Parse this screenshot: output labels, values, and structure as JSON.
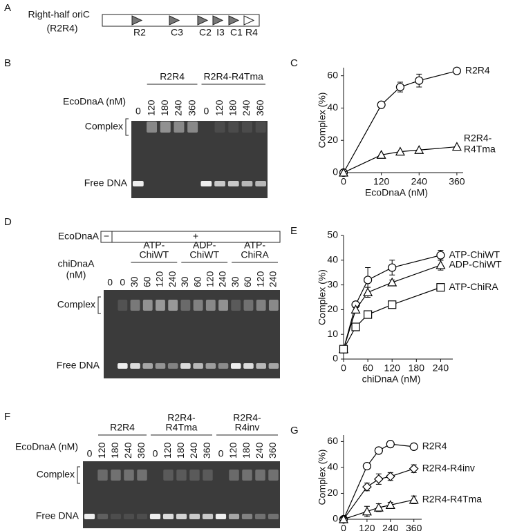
{
  "figure": {
    "A": {
      "label": "A",
      "title_line1": "Right-half oriC",
      "title_line2": "(R2R4)",
      "sites": [
        {
          "name": "R2",
          "filled": true
        },
        {
          "name": "C3",
          "filled": true
        },
        {
          "name": "C2",
          "filled": true
        },
        {
          "name": "I3",
          "filled": true
        },
        {
          "name": "C1",
          "filled": true
        },
        {
          "name": "R4",
          "filled": false
        }
      ]
    },
    "B": {
      "label": "B",
      "groups": [
        [
          "R2R4"
        ],
        [
          "R2R4-R4Tma"
        ]
      ],
      "axis_label": [
        "EcoDnaA (nM)"
      ],
      "lanes": [
        "0",
        "120",
        "180",
        "240",
        "360",
        "0",
        "120",
        "180",
        "240",
        "360"
      ],
      "complex": "Complex",
      "free": "Free DNA"
    },
    "D": {
      "label": "D",
      "protein": "EcoDnaA",
      "minus": "−",
      "plus": "+",
      "groups": [
        [
          "ATP-",
          "ChiWT"
        ],
        [
          "ADP-",
          "ChiWT"
        ],
        [
          "ATP-",
          "ChiRA"
        ]
      ],
      "axis_label": [
        "chiDnaA",
        "(nM)"
      ],
      "lanes": [
        "0",
        "0",
        "30",
        "60",
        "120",
        "240",
        "30",
        "60",
        "120",
        "240",
        "30",
        "60",
        "120",
        "240"
      ],
      "complex": "Complex",
      "free": "Free DNA"
    },
    "F": {
      "label": "F",
      "groups": [
        [
          "R2R4"
        ],
        [
          "R2R4-",
          "R4Tma"
        ],
        [
          "R2R4-",
          "R4inv"
        ]
      ],
      "axis_label": [
        "EcoDnaA (nM)"
      ],
      "lanes": [
        "0",
        "120",
        "180",
        "240",
        "360",
        "0",
        "120",
        "180",
        "240",
        "360",
        "0",
        "120",
        "180",
        "240",
        "360"
      ],
      "complex": "Complex",
      "free": "Free DNA"
    }
  },
  "chart_data": [
    {
      "type": "line",
      "label": "C",
      "ylabel": "Complex (%)",
      "xlabel": "EcoDnaA (nM)",
      "x": [
        0,
        120,
        180,
        240,
        360
      ],
      "xlim": [
        0,
        380
      ],
      "ylim": [
        0,
        65
      ],
      "xticks": [
        0,
        120,
        240,
        360
      ],
      "yticks": [
        0,
        20,
        40,
        60
      ],
      "series": [
        {
          "name": "R2R4",
          "color": "#000000",
          "marker": "circle",
          "values": [
            0,
            42,
            53,
            57,
            63
          ],
          "errors": [
            0,
            0,
            3,
            4,
            0
          ]
        },
        {
          "name": "R2R4-R4Tma",
          "color": "#000000",
          "marker": "triangle",
          "values": [
            0,
            11,
            13,
            14,
            16
          ],
          "errors": [
            0,
            0,
            0,
            0,
            0
          ]
        }
      ]
    },
    {
      "type": "line",
      "label": "E",
      "ylabel": "Complex (%)",
      "xlabel": "chiDnaA (nM)",
      "x": [
        0,
        30,
        60,
        120,
        240
      ],
      "xlim": [
        0,
        270
      ],
      "ylim": [
        0,
        50
      ],
      "xticks": [
        0,
        60,
        120,
        180,
        240
      ],
      "yticks": [
        0,
        10,
        20,
        30,
        40,
        50
      ],
      "series": [
        {
          "name": "ATP-ChiWT",
          "color": "#000000",
          "marker": "circle",
          "values": [
            4,
            22,
            32,
            37,
            42
          ],
          "errors": [
            1,
            1,
            5,
            3,
            2
          ]
        },
        {
          "name": "ADP-ChiWT",
          "color": "#000000",
          "marker": "triangle",
          "values": [
            4,
            20,
            27,
            31,
            38
          ],
          "errors": [
            1,
            1,
            2,
            1,
            2
          ]
        },
        {
          "name": "ATP-ChiRA",
          "color": "#000000",
          "marker": "square",
          "values": [
            4,
            13,
            18,
            22,
            29
          ],
          "errors": [
            1,
            1,
            1,
            1,
            1
          ]
        }
      ]
    },
    {
      "type": "line",
      "label": "G",
      "ylabel": "Complex (%)",
      "xlabel": "EcoDnaA (nM)",
      "x": [
        0,
        120,
        180,
        240,
        360
      ],
      "xlim": [
        0,
        400
      ],
      "ylim": [
        0,
        65
      ],
      "xticks": [
        0,
        120,
        240,
        360
      ],
      "yticks": [
        0,
        20,
        40,
        60
      ],
      "series": [
        {
          "name": "R2R4",
          "color": "#000000",
          "marker": "circle",
          "values": [
            0,
            41,
            53,
            58,
            56
          ],
          "errors": [
            0,
            0,
            0,
            0,
            0
          ]
        },
        {
          "name": "R2R4-R4inv",
          "color": "#000000",
          "marker": "diamond",
          "values": [
            0,
            25,
            31,
            33,
            39
          ],
          "errors": [
            0,
            3,
            4,
            3,
            3
          ]
        },
        {
          "name": "R2R4-R4Tma",
          "color": "#000000",
          "marker": "triangle",
          "values": [
            0,
            6,
            9,
            11,
            15
          ],
          "errors": [
            0,
            4,
            3,
            2,
            3
          ]
        }
      ]
    }
  ]
}
